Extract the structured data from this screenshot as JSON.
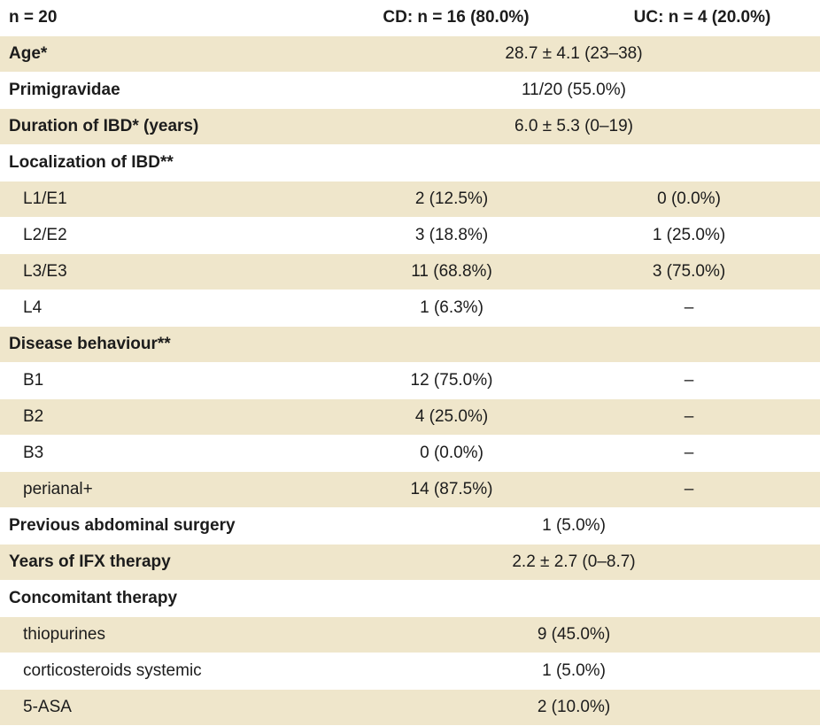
{
  "header": {
    "col1": "n = 20",
    "col2": "CD: n = 16 (80.0%)",
    "col3": "UC: n = 4 (20.0%)"
  },
  "rows": [
    {
      "label": "Age*",
      "value": "28.7 ± 4.1 (23–38)"
    },
    {
      "label": "Primigravidae",
      "value": "11/20 (55.0%)"
    },
    {
      "label": "Duration of IBD* (years)",
      "value": "6.0 ± 5.3 (0–19)"
    },
    {
      "label": "Localization of IBD**"
    },
    {
      "label": "L1/E1",
      "cd": "2 (12.5%)",
      "uc": "0 (0.0%)"
    },
    {
      "label": "L2/E2",
      "cd": "3 (18.8%)",
      "uc": "1 (25.0%)"
    },
    {
      "label": "L3/E3",
      "cd": "11 (68.8%)",
      "uc": "3 (75.0%)"
    },
    {
      "label": "L4",
      "cd": "1 (6.3%)",
      "uc": "–"
    },
    {
      "label": "Disease behaviour**"
    },
    {
      "label": "B1",
      "cd": "12 (75.0%)",
      "uc": "–"
    },
    {
      "label": "B2",
      "cd": "4 (25.0%)",
      "uc": "–"
    },
    {
      "label": "B3",
      "cd": "0 (0.0%)",
      "uc": "–"
    },
    {
      "label": "perianal+",
      "cd": "14 (87.5%)",
      "uc": "–"
    },
    {
      "label": "Previous abdominal surgery",
      "value": "1 (5.0%)"
    },
    {
      "label": "Years of IFX therapy",
      "value": "2.2 ± 2.7 (0–8.7)"
    },
    {
      "label": "Concomitant therapy"
    },
    {
      "label": "thiopurines",
      "value": "9 (45.0%)"
    },
    {
      "label": "corticosteroids systemic",
      "value": "1 (5.0%)"
    },
    {
      "label": "5-ASA",
      "value": "2 (10.0%)"
    }
  ]
}
